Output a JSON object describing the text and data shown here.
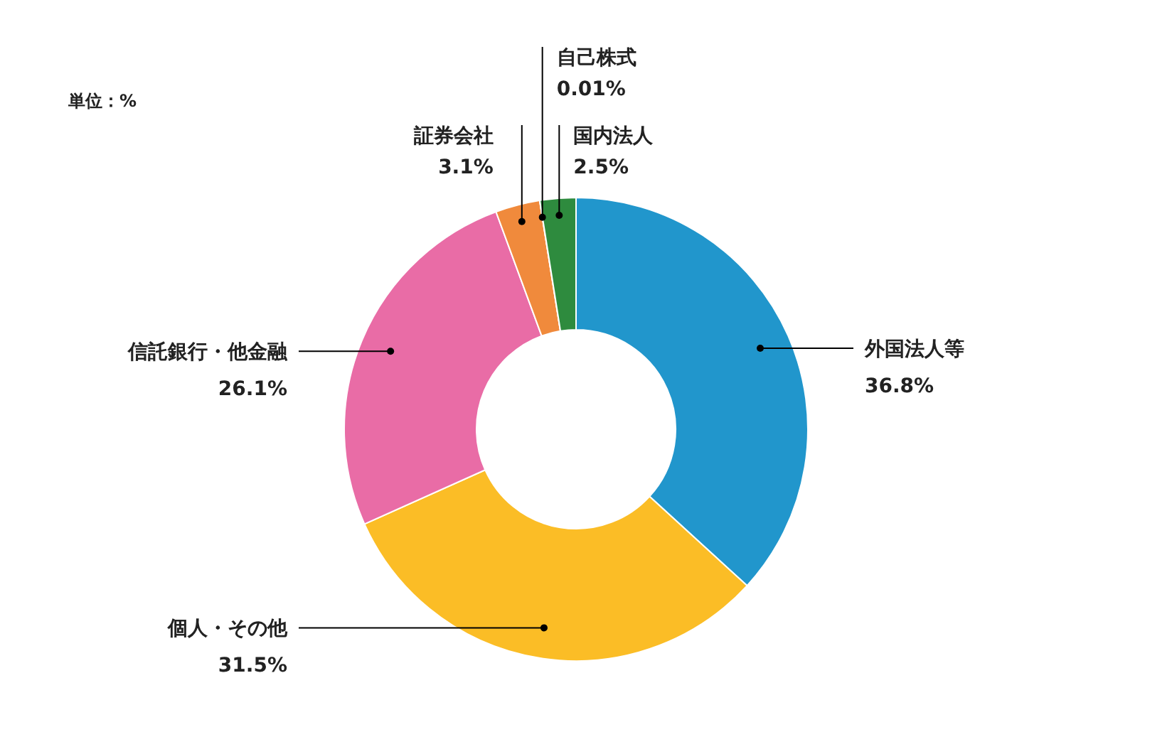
{
  "chart_data": {
    "type": "donut",
    "categories": [
      "外国法人等",
      "個人・その他",
      "信託銀行・他金融",
      "証券会社",
      "自己株式",
      "国内法人"
    ],
    "values": [
      36.8,
      31.5,
      26.1,
      3.1,
      0.01,
      2.5
    ],
    "colors": [
      "#2196cc",
      "#fbbd26",
      "#e96ca6",
      "#f08a3c",
      "#8bc34a",
      "#2e8b3e"
    ],
    "value_labels": [
      "36.8%",
      "31.5%",
      "26.1%",
      "3.1%",
      "0.01%",
      "2.5%"
    ],
    "annotations": [
      "単位：%"
    ]
  }
}
